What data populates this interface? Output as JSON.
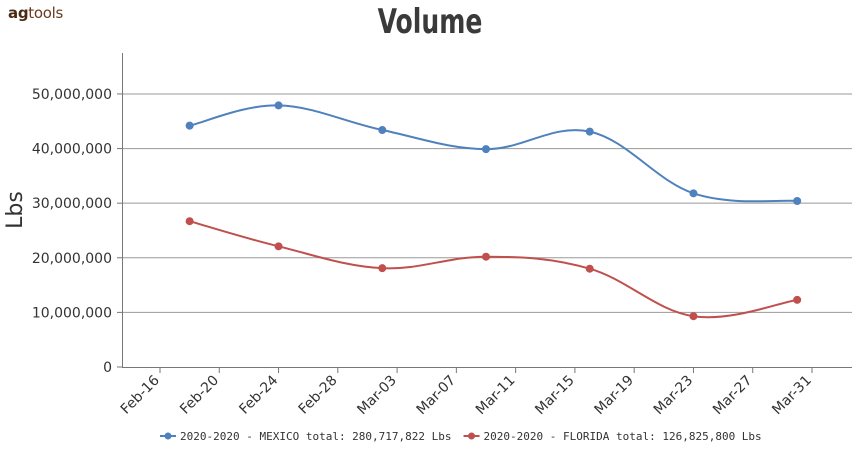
{
  "brand": {
    "prefix": "ag",
    "suffix": "tools"
  },
  "chart_data": {
    "type": "line",
    "title": "Volume",
    "xlabel": "",
    "ylabel": "Lbs",
    "x_tick_labels": [
      "Feb-16",
      "Feb-20",
      "Feb-24",
      "Feb-28",
      "Mar-03",
      "Mar-07",
      "Mar-11",
      "Mar-15",
      "Mar-19",
      "Mar-23",
      "Mar-27",
      "Mar-31"
    ],
    "ylim": [
      0,
      57500000
    ],
    "y_ticks": [
      0,
      10000000,
      20000000,
      30000000,
      40000000,
      50000000
    ],
    "y_tick_labels": [
      "0",
      "10,000,000",
      "20,000,000",
      "30,000,000",
      "40,000,000",
      "50,000,000"
    ],
    "grid": true,
    "legend_position": "bottom-center",
    "smooth": true,
    "x": [
      "2020-02-18",
      "2020-02-24",
      "2020-03-02",
      "2020-03-09",
      "2020-03-16",
      "2020-03-23",
      "2020-03-30"
    ],
    "series": [
      {
        "name": "2020-2020 - MEXICO total: 280,717,822 Lbs",
        "color": "#4f81bd",
        "values": [
          44200000,
          47900000,
          43400000,
          39900000,
          43100000,
          31800000,
          30400000
        ]
      },
      {
        "name": "2020-2020 - FLORIDA total: 126,825,800 Lbs",
        "color": "#c0504d",
        "values": [
          26700000,
          22100000,
          18100000,
          20200000,
          18000000,
          9300000,
          12300000
        ]
      }
    ]
  }
}
